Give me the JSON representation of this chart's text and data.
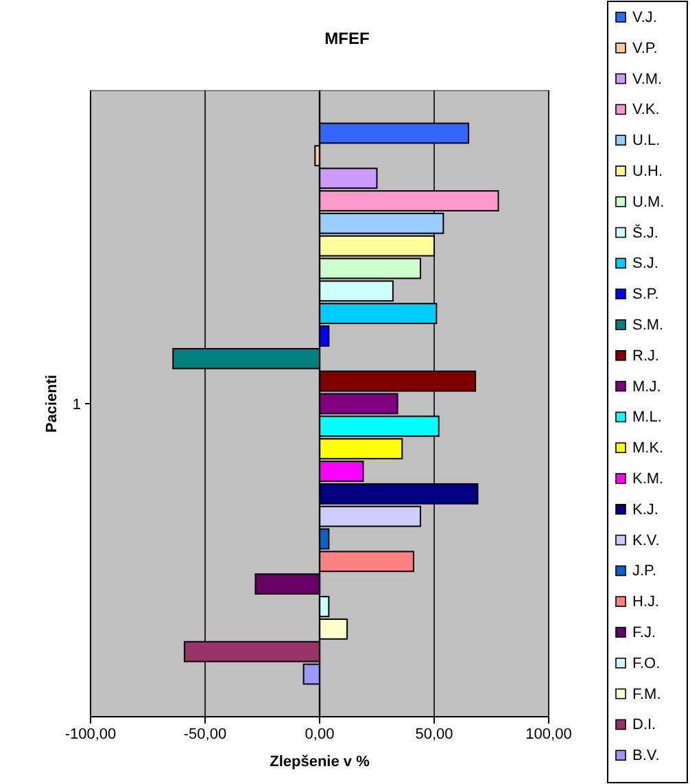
{
  "chart_data": {
    "type": "bar",
    "orientation": "horizontal",
    "title": "MFEF",
    "xlabel": "Zlepšenie v %",
    "ylabel": "Pacienti",
    "categories": [
      "1"
    ],
    "xlim": [
      -100,
      100
    ],
    "xticks": [
      {
        "value": -100,
        "label": "-100,00"
      },
      {
        "value": -50,
        "label": "-50,00"
      },
      {
        "value": 0,
        "label": "0,00"
      },
      {
        "value": 50,
        "label": "50,00"
      },
      {
        "value": 100,
        "label": "100,00"
      }
    ],
    "grid": "x",
    "legend": "right",
    "series": [
      {
        "name": "V.J.",
        "color": "#3366ff",
        "values": [
          65
        ]
      },
      {
        "name": "V.P.",
        "color": "#ffcc99",
        "values": [
          -2
        ]
      },
      {
        "name": "V.M.",
        "color": "#cc99ff",
        "values": [
          25
        ]
      },
      {
        "name": "V.K.",
        "color": "#ff99cc",
        "values": [
          78
        ]
      },
      {
        "name": "U.L.",
        "color": "#99ccff",
        "values": [
          54
        ]
      },
      {
        "name": "U.H.",
        "color": "#ffff99",
        "values": [
          50
        ]
      },
      {
        "name": "U.M.",
        "color": "#ccffcc",
        "values": [
          44
        ]
      },
      {
        "name": "Š.J.",
        "color": "#ccffff",
        "values": [
          32
        ]
      },
      {
        "name": "S.J.",
        "color": "#00ccff",
        "values": [
          51
        ]
      },
      {
        "name": "S.P.",
        "color": "#0000ff",
        "values": [
          4
        ]
      },
      {
        "name": "S.M.",
        "color": "#008080",
        "values": [
          -64
        ]
      },
      {
        "name": "R.J.",
        "color": "#800000",
        "values": [
          68
        ]
      },
      {
        "name": "M.J.",
        "color": "#800080",
        "values": [
          34
        ]
      },
      {
        "name": "M.L.",
        "color": "#00ffff",
        "values": [
          52
        ]
      },
      {
        "name": "M.K.",
        "color": "#ffff00",
        "values": [
          36
        ]
      },
      {
        "name": "K.M.",
        "color": "#ff00ff",
        "values": [
          19
        ]
      },
      {
        "name": "K.J.",
        "color": "#000080",
        "values": [
          69
        ]
      },
      {
        "name": "K.V.",
        "color": "#ccccff",
        "values": [
          44
        ]
      },
      {
        "name": "J.P.",
        "color": "#0066cc",
        "values": [
          4
        ]
      },
      {
        "name": "H.J.",
        "color": "#ff8080",
        "values": [
          41
        ]
      },
      {
        "name": "F.J.",
        "color": "#660066",
        "values": [
          -28
        ]
      },
      {
        "name": "F.O.",
        "color": "#ccffff",
        "values": [
          4
        ]
      },
      {
        "name": "F.M.",
        "color": "#ffffcc",
        "values": [
          12
        ]
      },
      {
        "name": "D.I.",
        "color": "#993366",
        "values": [
          -59
        ]
      },
      {
        "name": "B.V.",
        "color": "#9999ff",
        "values": [
          -7
        ]
      }
    ]
  }
}
